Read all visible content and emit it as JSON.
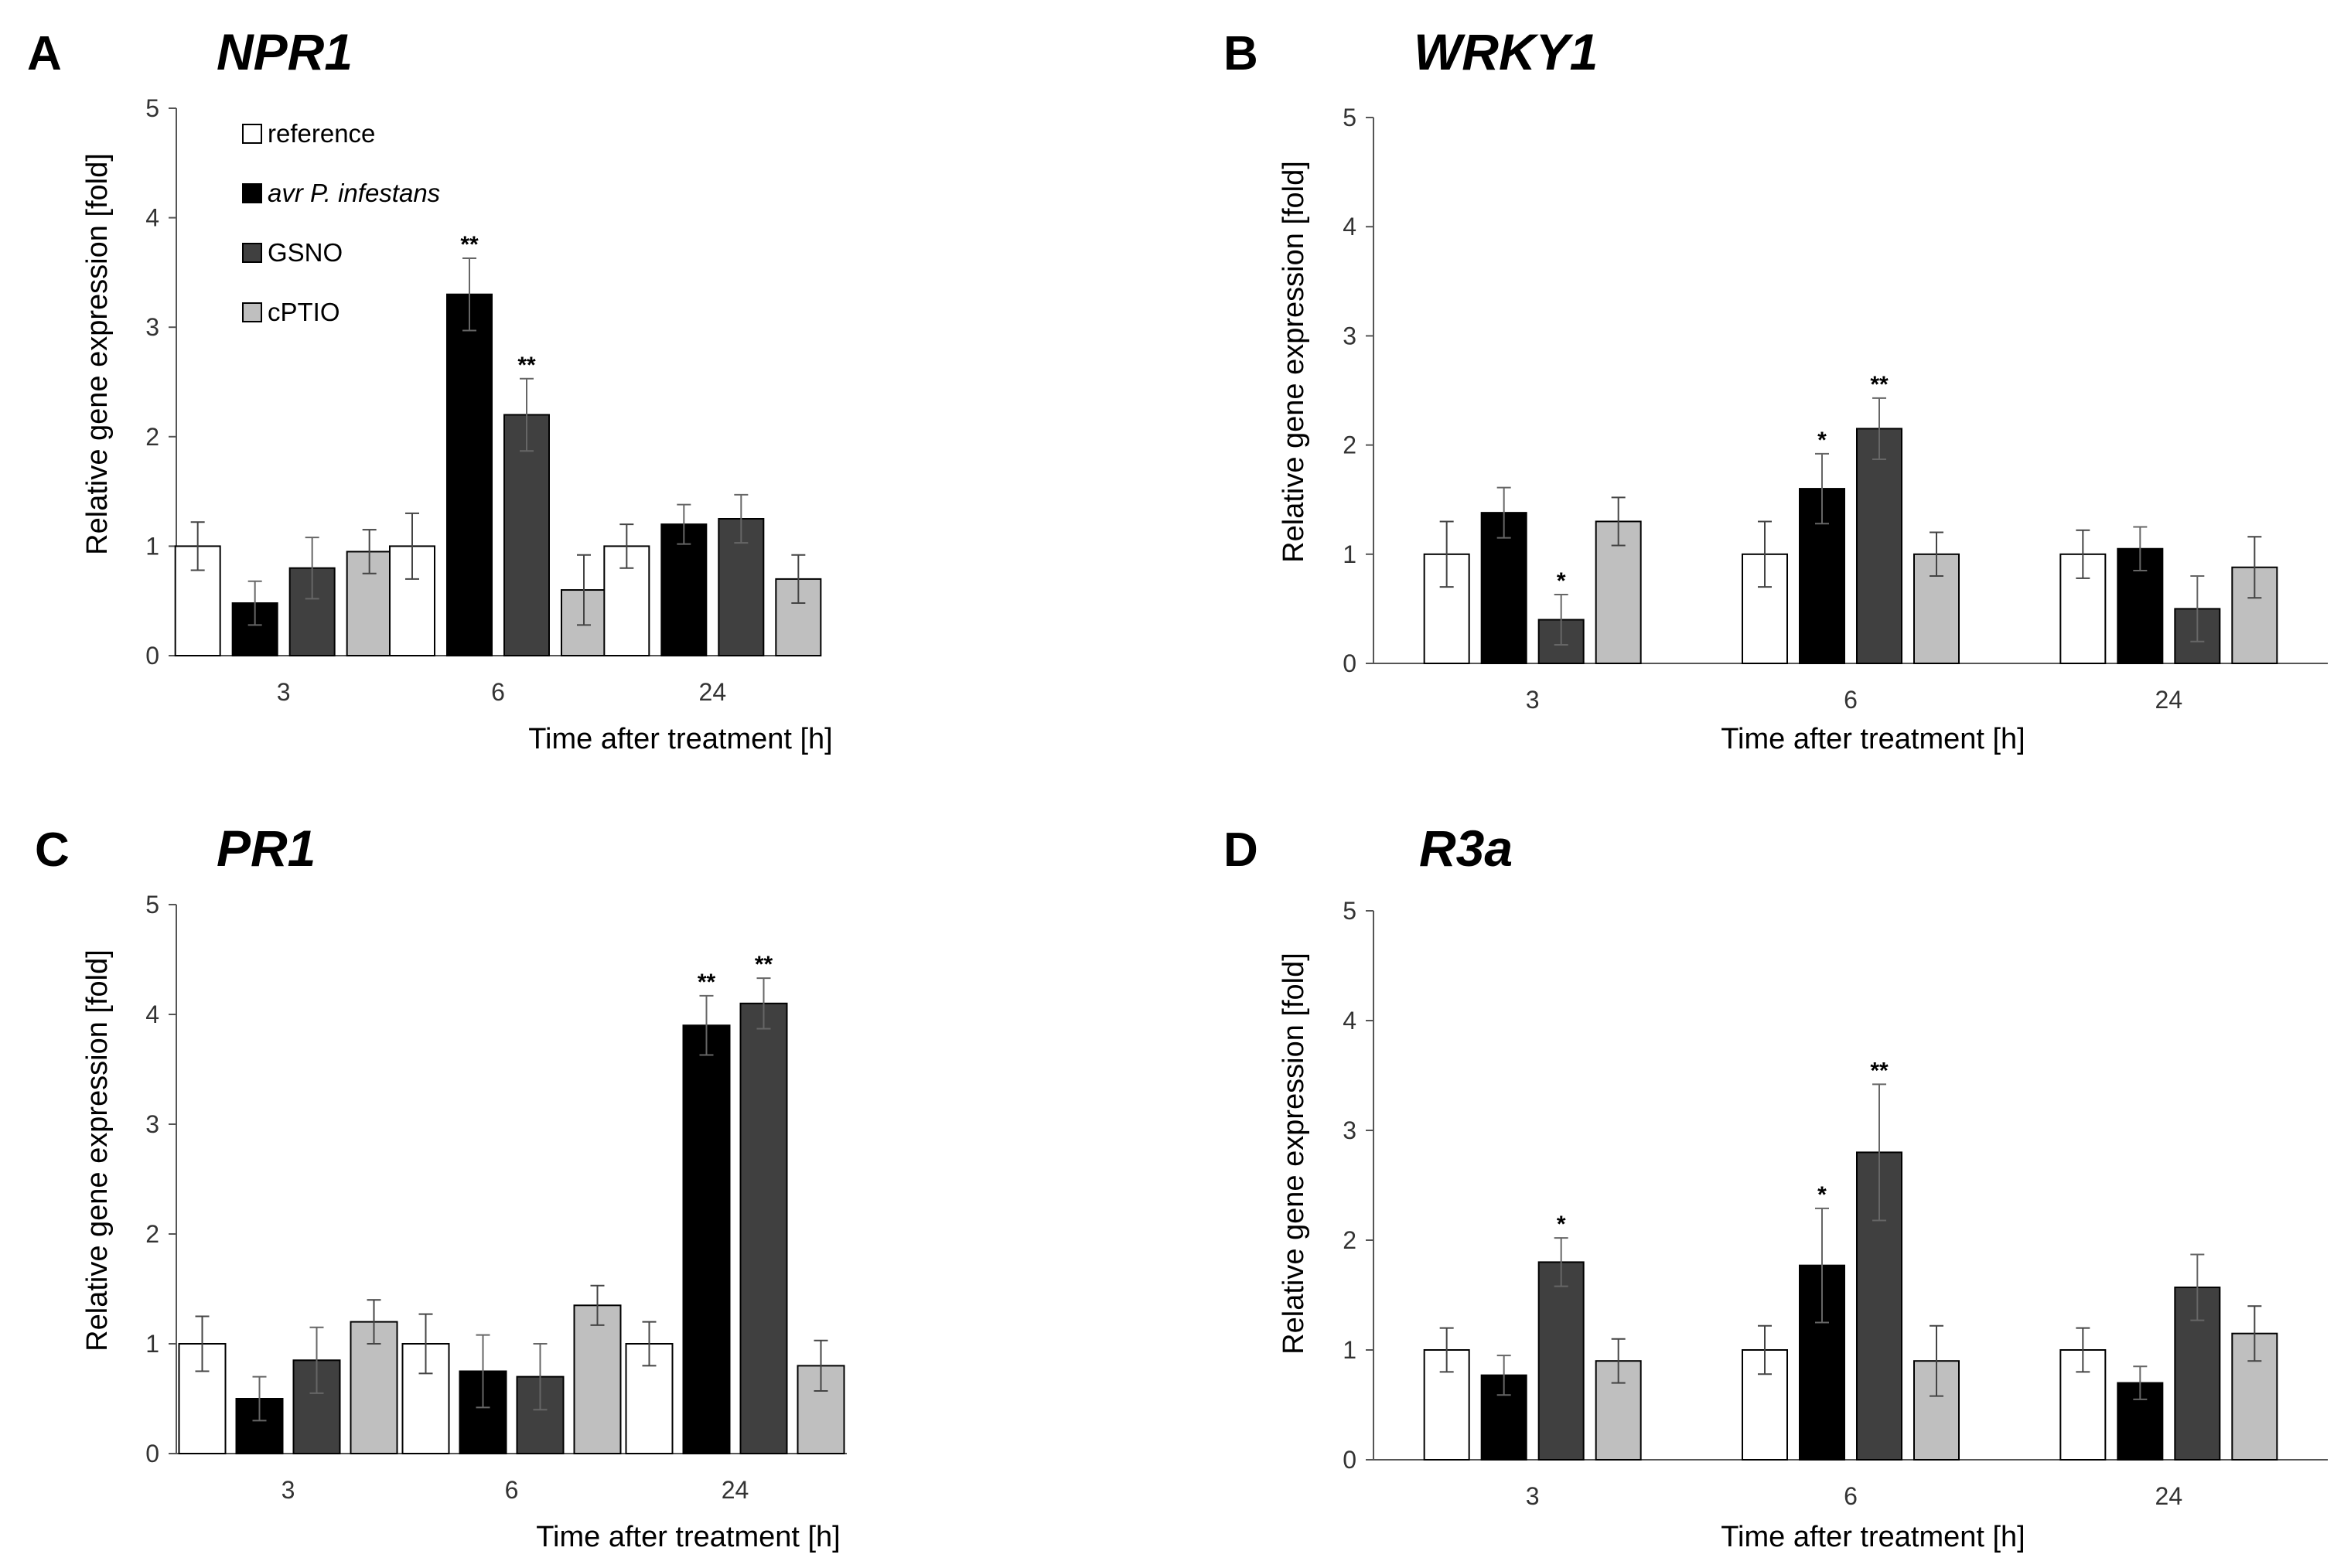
{
  "legend": [
    {
      "label": "reference",
      "color": "#ffffff",
      "italic": false
    },
    {
      "label": "avr P. infestans",
      "color": "#000000",
      "italic": true
    },
    {
      "label": "GSNO",
      "color": "#404040",
      "italic": false
    },
    {
      "label": "cPTIO",
      "color": "#bfbfbf",
      "italic": false
    }
  ],
  "chart_data": [
    {
      "panel": "A",
      "title": "NPR1",
      "type": "bar",
      "xlabel": "Time after treatment [h]",
      "ylabel": "Relative gene expression [fold]",
      "ylim": [
        0,
        5
      ],
      "yticks": [
        "0",
        "1",
        "2",
        "3",
        "4",
        "5"
      ],
      "categories": [
        "3",
        "6",
        "24"
      ],
      "series": [
        {
          "name": "reference",
          "values": [
            1.0,
            1.0,
            1.0
          ],
          "errors": [
            0.22,
            0.3,
            0.2
          ],
          "sig": [
            "",
            "",
            ""
          ]
        },
        {
          "name": "avr P. infestans",
          "values": [
            0.48,
            3.3,
            1.2
          ],
          "errors": [
            0.2,
            0.33,
            0.18
          ],
          "sig": [
            "",
            "**",
            ""
          ]
        },
        {
          "name": "GSNO",
          "values": [
            0.8,
            2.2,
            1.25
          ],
          "errors": [
            0.28,
            0.33,
            0.22
          ],
          "sig": [
            "",
            "**",
            ""
          ]
        },
        {
          "name": "cPTIO",
          "values": [
            0.95,
            0.6,
            0.7
          ],
          "errors": [
            0.2,
            0.32,
            0.22
          ],
          "sig": [
            "",
            "",
            ""
          ]
        }
      ]
    },
    {
      "panel": "B",
      "title": "WRKY1",
      "type": "bar",
      "xlabel": "Time after treatment [h]",
      "ylabel": "Relative gene expression [fold]",
      "ylim": [
        0,
        5
      ],
      "yticks": [
        "0",
        "1",
        "2",
        "3",
        "4",
        "5"
      ],
      "categories": [
        "3",
        "6",
        "24"
      ],
      "series": [
        {
          "name": "reference",
          "values": [
            1.0,
            1.0,
            1.0
          ],
          "errors": [
            0.3,
            0.3,
            0.22
          ],
          "sig": [
            "",
            "",
            ""
          ]
        },
        {
          "name": "avr P. infestans",
          "values": [
            1.38,
            1.6,
            1.05
          ],
          "errors": [
            0.23,
            0.32,
            0.2
          ],
          "sig": [
            "",
            "*",
            ""
          ]
        },
        {
          "name": "GSNO",
          "values": [
            0.4,
            2.15,
            0.5
          ],
          "errors": [
            0.23,
            0.28,
            0.3
          ],
          "sig": [
            "*",
            "**",
            ""
          ]
        },
        {
          "name": "cPTIO",
          "values": [
            1.3,
            1.0,
            0.88
          ],
          "errors": [
            0.22,
            0.2,
            0.28
          ],
          "sig": [
            "",
            "",
            ""
          ]
        }
      ]
    },
    {
      "panel": "C",
      "title": "PR1",
      "type": "bar",
      "xlabel": "Time after treatment [h]",
      "ylabel": "Relative gene expression [fold]",
      "ylim": [
        0,
        5
      ],
      "yticks": [
        "0",
        "1",
        "2",
        "3",
        "4",
        "5"
      ],
      "categories": [
        "3",
        "6",
        "24"
      ],
      "series": [
        {
          "name": "reference",
          "values": [
            1.0,
            1.0,
            1.0
          ],
          "errors": [
            0.25,
            0.27,
            0.2
          ],
          "sig": [
            "",
            "",
            ""
          ]
        },
        {
          "name": "avr P. infestans",
          "values": [
            0.5,
            0.75,
            3.9
          ],
          "errors": [
            0.2,
            0.33,
            0.27
          ],
          "sig": [
            "",
            "",
            "**"
          ]
        },
        {
          "name": "GSNO",
          "values": [
            0.85,
            0.7,
            4.1
          ],
          "errors": [
            0.3,
            0.3,
            0.23
          ],
          "sig": [
            "",
            "",
            "**"
          ]
        },
        {
          "name": "cPTIO",
          "values": [
            1.2,
            1.35,
            0.8
          ],
          "errors": [
            0.2,
            0.18,
            0.23
          ],
          "sig": [
            "",
            "",
            ""
          ]
        }
      ]
    },
    {
      "panel": "D",
      "title": "R3a",
      "type": "bar",
      "xlabel": "Time after treatment [h]",
      "ylabel": "Relative gene expression [fold]",
      "ylim": [
        0,
        5
      ],
      "yticks": [
        "0",
        "1",
        "2",
        "3",
        "4",
        "5"
      ],
      "categories": [
        "3",
        "6",
        "24"
      ],
      "series": [
        {
          "name": "reference",
          "values": [
            1.0,
            1.0,
            1.0
          ],
          "errors": [
            0.2,
            0.22,
            0.2
          ],
          "sig": [
            "",
            "",
            ""
          ]
        },
        {
          "name": "avr P. infestans",
          "values": [
            0.77,
            1.77,
            0.7
          ],
          "errors": [
            0.18,
            0.52,
            0.15
          ],
          "sig": [
            "",
            "*",
            ""
          ]
        },
        {
          "name": "GSNO",
          "values": [
            1.8,
            2.8,
            1.57
          ],
          "errors": [
            0.22,
            0.62,
            0.3
          ],
          "sig": [
            "*",
            "**",
            ""
          ]
        },
        {
          "name": "cPTIO",
          "values": [
            0.9,
            0.9,
            1.15
          ],
          "errors": [
            0.2,
            0.32,
            0.25
          ],
          "sig": [
            "",
            "",
            ""
          ]
        }
      ]
    }
  ]
}
